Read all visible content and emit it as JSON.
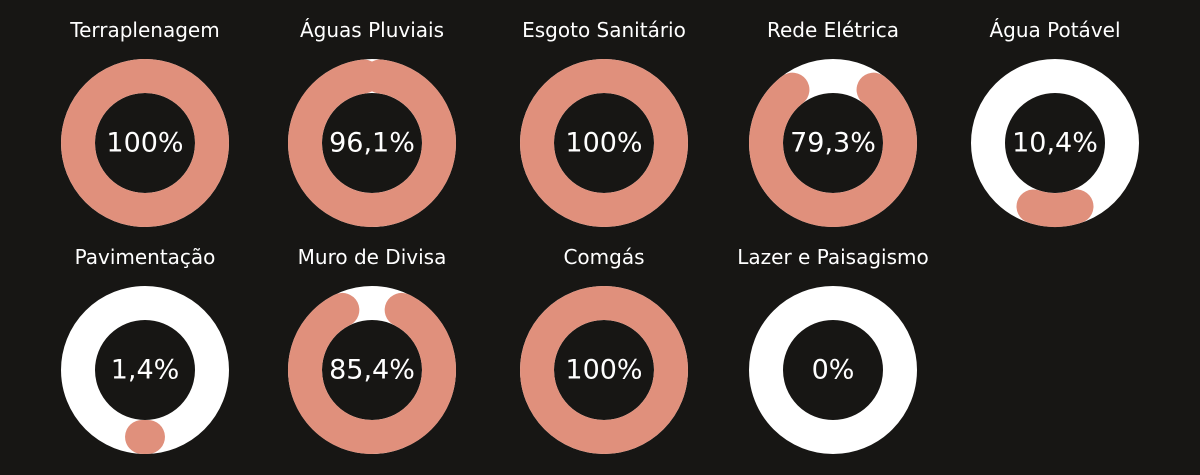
{
  "colors": {
    "background": "#171614",
    "progress": "#e0907c",
    "track": "#ffffff",
    "text": "#ffffff"
  },
  "chart_data": {
    "type": "donut-progress",
    "items": [
      {
        "title": "Terraplenagem",
        "value": 100,
        "label": "100%"
      },
      {
        "title": "Águas Pluviais",
        "value": 96.1,
        "label": "96,1%"
      },
      {
        "title": "Esgoto Sanitário",
        "value": 100,
        "label": "100%"
      },
      {
        "title": "Rede Elétrica",
        "value": 79.3,
        "label": "79,3%"
      },
      {
        "title": "Água Potável",
        "value": 10.4,
        "label": "10,4%"
      },
      {
        "title": "Pavimentação",
        "value": 1.4,
        "label": "1,4%"
      },
      {
        "title": "Muro de Divisa",
        "value": 85.4,
        "label": "85,4%"
      },
      {
        "title": "Comgás",
        "value": 100,
        "label": "100%"
      },
      {
        "title": "Lazer e Paisagismo",
        "value": 0,
        "label": "0%"
      }
    ]
  }
}
